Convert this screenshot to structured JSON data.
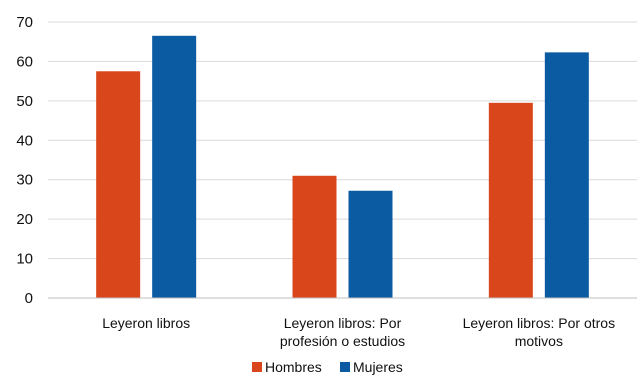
{
  "chart_data": {
    "type": "bar",
    "title": "",
    "xlabel": "",
    "ylabel": "",
    "ylim": [
      0,
      70
    ],
    "yticks": [
      0,
      10,
      20,
      30,
      40,
      50,
      60,
      70
    ],
    "grid": true,
    "legend_position": "bottom",
    "categories": [
      [
        "Leyeron libros"
      ],
      [
        "Leyeron libros: Por",
        "profesión o estudios"
      ],
      [
        "Leyeron libros: Por otros",
        "motivos"
      ]
    ],
    "series": [
      {
        "name": "Hombres",
        "color": "#d9461b",
        "values": [
          57.5,
          31.0,
          49.5
        ]
      },
      {
        "name": "Mujeres",
        "color": "#0b5ba3",
        "values": [
          66.5,
          27.2,
          62.3
        ]
      }
    ]
  }
}
